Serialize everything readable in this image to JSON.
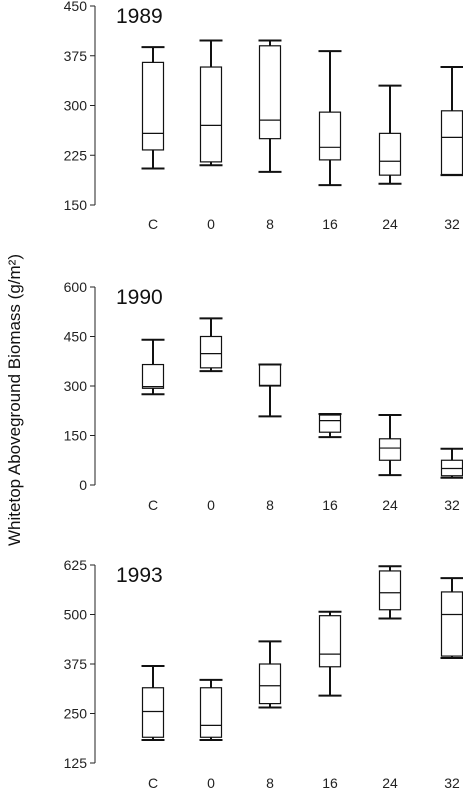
{
  "ylabel": "Whitetop Aboveground Biomass (g/m²)",
  "chart_data": [
    {
      "type": "box",
      "title": "1989",
      "categories": [
        "C",
        "0",
        "8",
        "16",
        "24",
        "32"
      ],
      "yticks": [
        150,
        225,
        300,
        375,
        450
      ],
      "ylim": [
        150,
        450
      ],
      "boxes": [
        {
          "min": 205,
          "q1": 233,
          "median": 258,
          "q3": 365,
          "max": 388
        },
        {
          "min": 210,
          "q1": 215,
          "median": 270,
          "q3": 358,
          "max": 398
        },
        {
          "min": 200,
          "q1": 250,
          "median": 278,
          "q3": 390,
          "max": 398
        },
        {
          "min": 180,
          "q1": 218,
          "median": 237,
          "q3": 290,
          "max": 382
        },
        {
          "min": 182,
          "q1": 195,
          "median": 216,
          "q3": 258,
          "max": 330
        },
        {
          "min": 195,
          "q1": 196,
          "median": 252,
          "q3": 292,
          "max": 358
        }
      ]
    },
    {
      "type": "box",
      "title": "1990",
      "categories": [
        "C",
        "0",
        "8",
        "16",
        "24",
        "32"
      ],
      "yticks": [
        0,
        150,
        300,
        450,
        600
      ],
      "ylim": [
        0,
        600
      ],
      "boxes": [
        {
          "min": 275,
          "q1": 293,
          "median": 298,
          "q3": 365,
          "max": 440
        },
        {
          "min": 345,
          "q1": 355,
          "median": 398,
          "q3": 450,
          "max": 505
        },
        {
          "min": 208,
          "q1": 300,
          "median": 302,
          "q3": 365,
          "max": 365
        },
        {
          "min": 145,
          "q1": 160,
          "median": 195,
          "q3": 212,
          "max": 215
        },
        {
          "min": 30,
          "q1": 75,
          "median": 112,
          "q3": 140,
          "max": 212
        },
        {
          "min": 22,
          "q1": 28,
          "median": 50,
          "q3": 75,
          "max": 110
        }
      ]
    },
    {
      "type": "box",
      "title": "1993",
      "categories": [
        "C",
        "0",
        "8",
        "16",
        "24",
        "32"
      ],
      "yticks": [
        125,
        250,
        375,
        500,
        625
      ],
      "ylim": [
        125,
        625
      ],
      "boxes": [
        {
          "min": 183,
          "q1": 190,
          "median": 255,
          "q3": 315,
          "max": 370
        },
        {
          "min": 183,
          "q1": 190,
          "median": 220,
          "q3": 315,
          "max": 335
        },
        {
          "min": 265,
          "q1": 275,
          "median": 320,
          "q3": 375,
          "max": 432
        },
        {
          "min": 295,
          "q1": 368,
          "median": 400,
          "q3": 497,
          "max": 507
        },
        {
          "min": 490,
          "q1": 512,
          "median": 555,
          "q3": 610,
          "max": 622
        },
        {
          "min": 390,
          "q1": 395,
          "median": 500,
          "q3": 557,
          "max": 592
        }
      ]
    }
  ]
}
